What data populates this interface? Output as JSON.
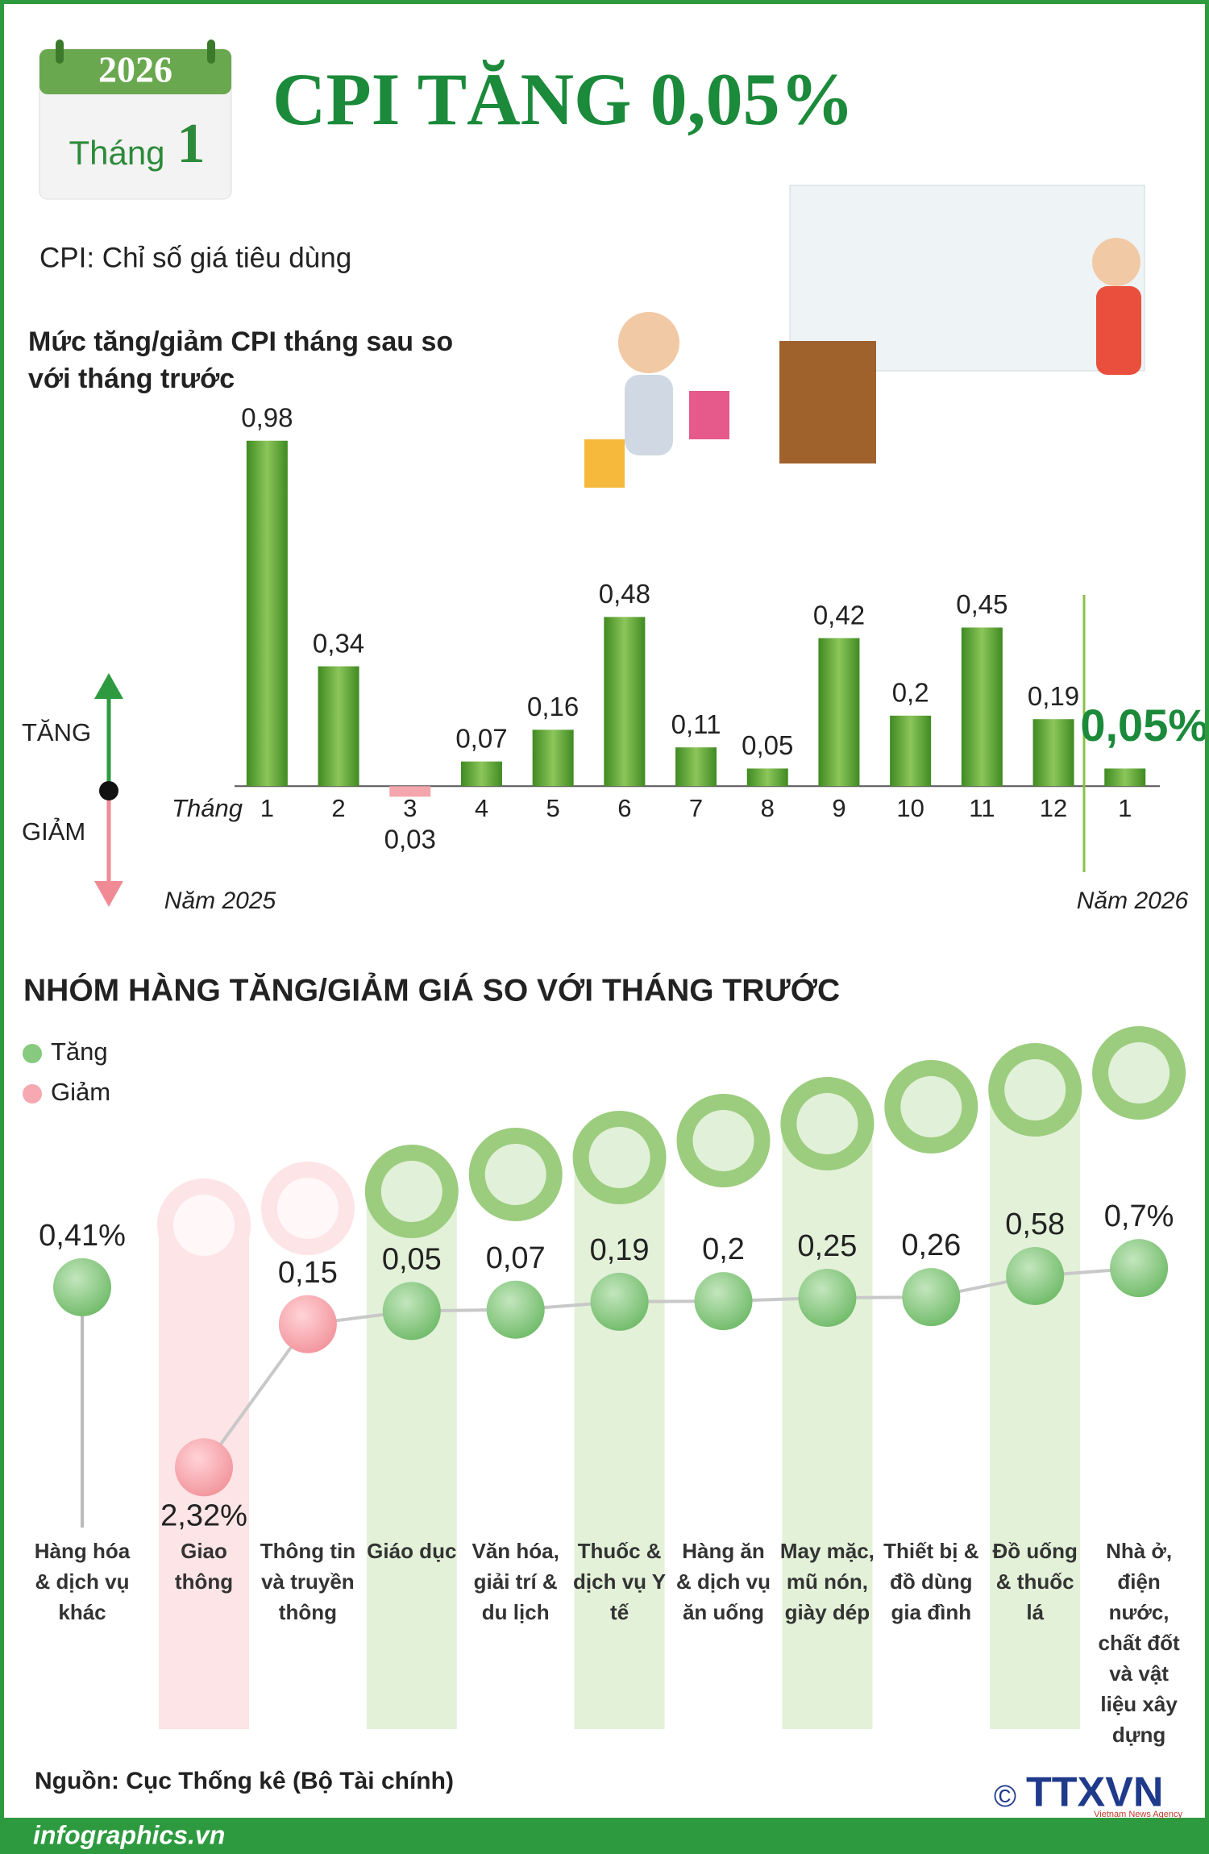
{
  "header": {
    "year": "2026",
    "month_label": "Tháng",
    "month": "1",
    "title": "CPI TĂNG 0,05%",
    "subtitle": "CPI: Chỉ số giá tiêu dùng"
  },
  "chart_data": [
    {
      "type": "bar",
      "title": "Mức tăng/giảm CPI tháng sau so với tháng trước",
      "x_label": "Tháng",
      "categories": [
        "1",
        "2",
        "3",
        "4",
        "5",
        "6",
        "7",
        "8",
        "9",
        "10",
        "11",
        "12",
        "1"
      ],
      "values": [
        0.98,
        0.34,
        -0.03,
        0.07,
        0.16,
        0.48,
        0.11,
        0.05,
        0.42,
        0.2,
        0.45,
        0.19,
        0.05
      ],
      "value_labels": [
        "0,98",
        "0,34",
        "0,03",
        "0,07",
        "0,16",
        "0,48",
        "0,11",
        "0,05",
        "0,42",
        "0,2",
        "0,45",
        "0,19",
        "0,05%"
      ],
      "color": "#5a9e34",
      "negative_color": "#f4a6ac",
      "up_label": "TĂNG",
      "down_label": "GIẢM",
      "period_labels": [
        "Năm 2025",
        "Năm 2026"
      ],
      "ylim": [
        -0.1,
        1.0
      ]
    },
    {
      "type": "line",
      "title": "NHÓM HÀNG TĂNG/GIẢM GIÁ SO VỚI THÁNG TRƯỚC",
      "legend": [
        {
          "name": "Tăng",
          "color": "#86c97f"
        },
        {
          "name": "Giảm",
          "color": "#f6a9b0"
        }
      ],
      "categories": [
        "Hàng hóa & dịch vụ khác",
        "Giao thông",
        "Thông tin và truyền thông",
        "Giáo dục",
        "Văn hóa, giải trí & du lịch",
        "Thuốc & dịch vụ Y tế",
        "Hàng ăn & dịch vụ ăn uống",
        "May mặc, mũ nón, giày dép",
        "Thiết bị & đồ dùng gia đình",
        "Đồ uống & thuốc lá",
        "Nhà ở, điện nước, chất đốt và vật liệu xây dựng"
      ],
      "values": [
        0.41,
        -2.32,
        -0.15,
        0.05,
        0.07,
        0.19,
        0.2,
        0.25,
        0.26,
        0.58,
        0.7
      ],
      "value_labels": [
        "0,41%",
        "2,32%",
        "0,15",
        "0,05",
        "0,07",
        "0,19",
        "0,2",
        "0,25",
        "0,26",
        "0,58",
        "0,7%"
      ],
      "ylim": [
        -2.5,
        0.8
      ]
    }
  ],
  "footer": {
    "source": "Nguồn: Cục Thống kê (Bộ Tài chính)",
    "website": "infographics.vn",
    "copyright": "©",
    "agency": "TTXVN",
    "agency_sub": "Vietnam News Agency"
  }
}
